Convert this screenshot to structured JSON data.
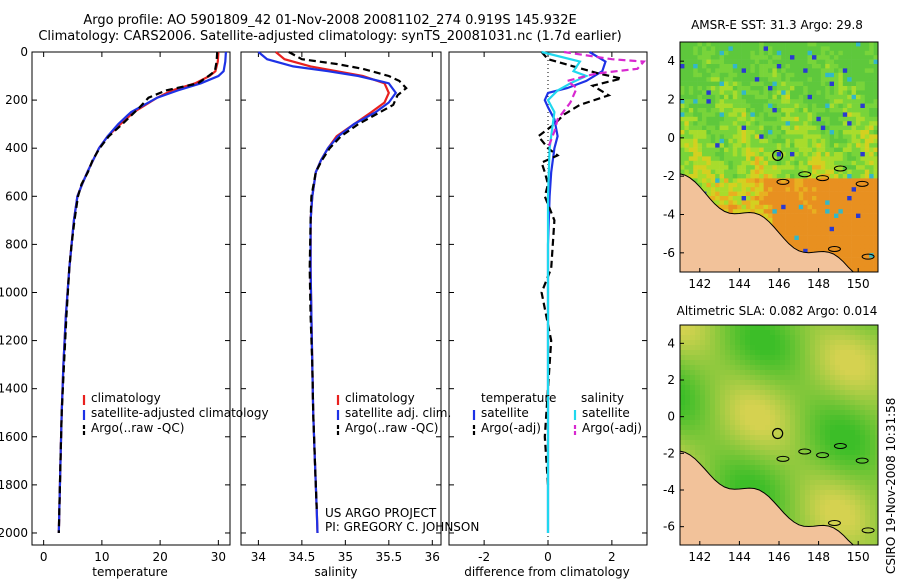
{
  "figure": {
    "title_line1": "Argo profile: AO 5901809_42 01-Nov-2008 20081102_274 0.919S 145.932E",
    "title_line2": "Climatology: CARS2006. Satellite-adjusted climatology: synTS_20081031.nc (1.7d earlier)",
    "side_text": "CSIRO 19-Nov-2008 10:31:58",
    "credit_line1": "US ARGO PROJECT",
    "credit_line2": "PI: GREGORY C. JOHNSON",
    "colors": {
      "climatology": "#e8201e",
      "satellite": "#1e32e6",
      "argo": "#000000",
      "sal_satellite": "#20d8ee",
      "sal_argo": "#d828d0",
      "land": "#f2c29a"
    }
  },
  "chart_data": [
    {
      "type": "line",
      "id": "temperature",
      "xlabel": "temperature",
      "ylabel": "",
      "xlim": [
        -2,
        32
      ],
      "ylim": [
        2050,
        0
      ],
      "xticks": [
        0,
        10,
        20,
        30
      ],
      "yticks": [
        0,
        200,
        400,
        600,
        800,
        1000,
        1200,
        1400,
        1600,
        1800,
        2000
      ],
      "legend": [
        "climatology",
        "satellite-adjusted climatology",
        "Argo(..raw -QC)"
      ],
      "series": [
        {
          "name": "climatology",
          "style": "solid",
          "color": "climatology",
          "x": [
            30.0,
            29.9,
            29.5,
            28.5,
            26.0,
            22.0,
            19.5,
            15.5,
            13.2,
            11.0,
            9.5,
            8.5,
            7.5,
            6.6,
            5.8,
            5.2,
            4.8,
            4.4,
            3.8,
            3.4,
            3.1,
            2.9,
            2.6
          ],
          "y": [
            0,
            40,
            80,
            100,
            130,
            160,
            190,
            250,
            300,
            350,
            400,
            450,
            500,
            550,
            600,
            700,
            800,
            900,
            1100,
            1300,
            1500,
            1700,
            2000
          ]
        },
        {
          "name": "satellite-adjusted climatology",
          "style": "solid",
          "color": "satellite",
          "x": [
            31.3,
            31.2,
            30.9,
            30.0,
            27.0,
            23.0,
            19.5,
            15.0,
            12.8,
            11.0,
            9.5,
            8.5,
            7.5,
            6.6,
            5.8,
            5.2,
            4.8,
            4.4,
            3.8,
            3.4,
            3.1,
            2.9,
            2.6
          ],
          "y": [
            0,
            40,
            80,
            100,
            130,
            160,
            190,
            250,
            300,
            350,
            400,
            450,
            500,
            550,
            600,
            700,
            800,
            900,
            1100,
            1300,
            1500,
            1700,
            2000
          ]
        },
        {
          "name": "Argo(..raw -QC)",
          "style": "dashed",
          "color": "argo",
          "x": [
            29.8,
            29.7,
            29.4,
            28.3,
            26.5,
            21.0,
            18.0,
            16.5,
            13.5,
            11.2,
            9.6,
            8.4,
            7.6,
            6.5,
            5.9,
            5.3,
            4.8,
            4.4,
            3.9,
            3.5,
            3.1,
            2.9,
            2.6
          ],
          "y": [
            0,
            40,
            80,
            100,
            130,
            160,
            190,
            230,
            300,
            350,
            400,
            450,
            500,
            550,
            600,
            700,
            800,
            900,
            1100,
            1300,
            1500,
            1700,
            2000
          ]
        }
      ]
    },
    {
      "type": "line",
      "id": "salinity",
      "xlabel": "salinity",
      "ylabel": "",
      "xlim": [
        33.8,
        36.1
      ],
      "ylim": [
        2050,
        0
      ],
      "xticks": [
        34,
        34.5,
        35,
        35.5,
        36
      ],
      "legend": [
        "climatology",
        "satellite adj. clim.",
        "Argo(..raw -QC)"
      ],
      "series": [
        {
          "name": "climatology",
          "style": "solid",
          "color": "climatology",
          "x": [
            34.2,
            34.3,
            34.6,
            34.9,
            35.2,
            35.45,
            35.5,
            35.45,
            35.3,
            35.1,
            34.9,
            34.8,
            34.72,
            34.66,
            34.62,
            34.6,
            34.6,
            34.6,
            34.61,
            34.62,
            34.63,
            34.65,
            34.67,
            34.68
          ],
          "y": [
            0,
            30,
            60,
            80,
            100,
            130,
            170,
            210,
            250,
            300,
            350,
            400,
            450,
            500,
            600,
            700,
            800,
            900,
            1100,
            1300,
            1500,
            1700,
            1900,
            2000
          ]
        },
        {
          "name": "satellite adj. clim.",
          "style": "solid",
          "color": "satellite",
          "x": [
            34.0,
            34.1,
            34.4,
            34.8,
            35.15,
            35.5,
            35.58,
            35.5,
            35.35,
            35.1,
            34.92,
            34.8,
            34.72,
            34.66,
            34.62,
            34.6,
            34.6,
            34.6,
            34.61,
            34.62,
            34.63,
            34.65,
            34.67,
            34.68
          ],
          "y": [
            0,
            30,
            60,
            80,
            100,
            130,
            170,
            210,
            250,
            300,
            350,
            400,
            450,
            500,
            600,
            700,
            800,
            900,
            1100,
            1300,
            1500,
            1700,
            1900,
            2000
          ]
        },
        {
          "name": "Argo(..raw -QC)",
          "style": "dashed",
          "color": "argo",
          "x": [
            34.35,
            34.5,
            34.9,
            35.2,
            35.5,
            35.62,
            35.7,
            35.6,
            35.55,
            35.35,
            35.15,
            34.95,
            34.82,
            34.73,
            34.66,
            34.61,
            34.6,
            34.59,
            34.6,
            34.62,
            34.63,
            34.65,
            34.67
          ],
          "y": [
            0,
            30,
            50,
            70,
            100,
            120,
            150,
            180,
            220,
            260,
            300,
            350,
            400,
            450,
            500,
            600,
            700,
            900,
            1100,
            1300,
            1500,
            1700,
            1900
          ]
        }
      ]
    },
    {
      "type": "line",
      "id": "difference",
      "xlabel": "difference from climatology",
      "ylabel": "",
      "xlim": [
        -3.1,
        3.1
      ],
      "ylim": [
        2050,
        0
      ],
      "xticks": [
        -2,
        0,
        2
      ],
      "legend_headers": [
        "temperature",
        "salinity"
      ],
      "legend": [
        "satellite",
        "Argo(-adj)",
        "satellite",
        "Argo(-adj)"
      ],
      "series": [
        {
          "name": "temperature satellite",
          "style": "solid",
          "color": "satellite",
          "x": [
            1.3,
            1.8,
            1.7,
            1.2,
            0.6,
            0.0,
            -0.1,
            0.0,
            0.2,
            0.3,
            0.2,
            0.1,
            0.05,
            0.0,
            0.0,
            0.0,
            0.0
          ],
          "y": [
            0,
            40,
            80,
            120,
            150,
            170,
            200,
            230,
            280,
            350,
            400,
            500,
            600,
            800,
            1000,
            1500,
            2000
          ]
        },
        {
          "name": "temperature Argo(-adj)",
          "style": "dashed",
          "color": "argo",
          "x": [
            -0.2,
            0.0,
            0.8,
            1.6,
            2.3,
            1.4,
            1.9,
            1.0,
            0.5,
            0.2,
            -0.3,
            0.0,
            0.3,
            -0.2,
            -0.1,
            0.0,
            -0.1,
            0.2,
            0.1,
            -0.2,
            0.1,
            0.0,
            -0.1,
            0.0
          ],
          "y": [
            0,
            30,
            60,
            90,
            110,
            140,
            180,
            220,
            260,
            300,
            350,
            400,
            430,
            460,
            500,
            550,
            600,
            700,
            900,
            1000,
            1200,
            1400,
            1600,
            1800
          ]
        },
        {
          "name": "salinity satellite",
          "style": "solid",
          "color": "sal_satellite",
          "x": [
            -0.2,
            1.0,
            0.8,
            1.2,
            0.7,
            0.3,
            0.0,
            0.2,
            0.15,
            0.05,
            0.0,
            0.0,
            0.0,
            0.0
          ],
          "y": [
            0,
            40,
            80,
            100,
            130,
            160,
            200,
            250,
            300,
            400,
            600,
            800,
            1200,
            2000
          ]
        },
        {
          "name": "salinity Argo(-adj)",
          "style": "dashed",
          "color": "sal_argo",
          "x": [
            0.5,
            2.0,
            3.0,
            2.8,
            1.5,
            0.6,
            0.9,
            0.7,
            0.3,
            0.2,
            0.0
          ],
          "y": [
            0,
            30,
            40,
            70,
            90,
            120,
            150,
            210,
            280,
            330,
            400
          ]
        }
      ]
    },
    {
      "type": "heatmap",
      "id": "sst",
      "title": "AMSR-E SST: 31.3 Argo: 29.8",
      "xlim": [
        141,
        151
      ],
      "ylim": [
        -7,
        5
      ],
      "xticks": [
        142,
        144,
        146,
        148,
        150
      ],
      "yticks": [
        -6,
        -4,
        -2,
        0,
        2,
        4
      ],
      "marker": {
        "lon": 145.932,
        "lat": -0.919
      }
    },
    {
      "type": "heatmap",
      "id": "sla",
      "title": "Altimetric SLA: 0.082 Argo: 0.014",
      "xlim": [
        141,
        151
      ],
      "ylim": [
        -7,
        5
      ],
      "xticks": [
        142,
        144,
        146,
        148,
        150
      ],
      "yticks": [
        -6,
        -4,
        -2,
        0,
        2,
        4
      ],
      "marker": {
        "lon": 145.932,
        "lat": -0.919
      }
    }
  ]
}
